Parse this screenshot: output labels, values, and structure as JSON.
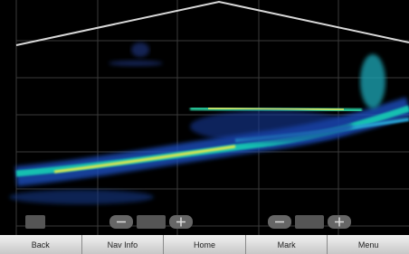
{
  "toolbar": {
    "buttons": [
      "Back",
      "Nav Info",
      "Home",
      "Mark",
      "Menu"
    ]
  }
}
